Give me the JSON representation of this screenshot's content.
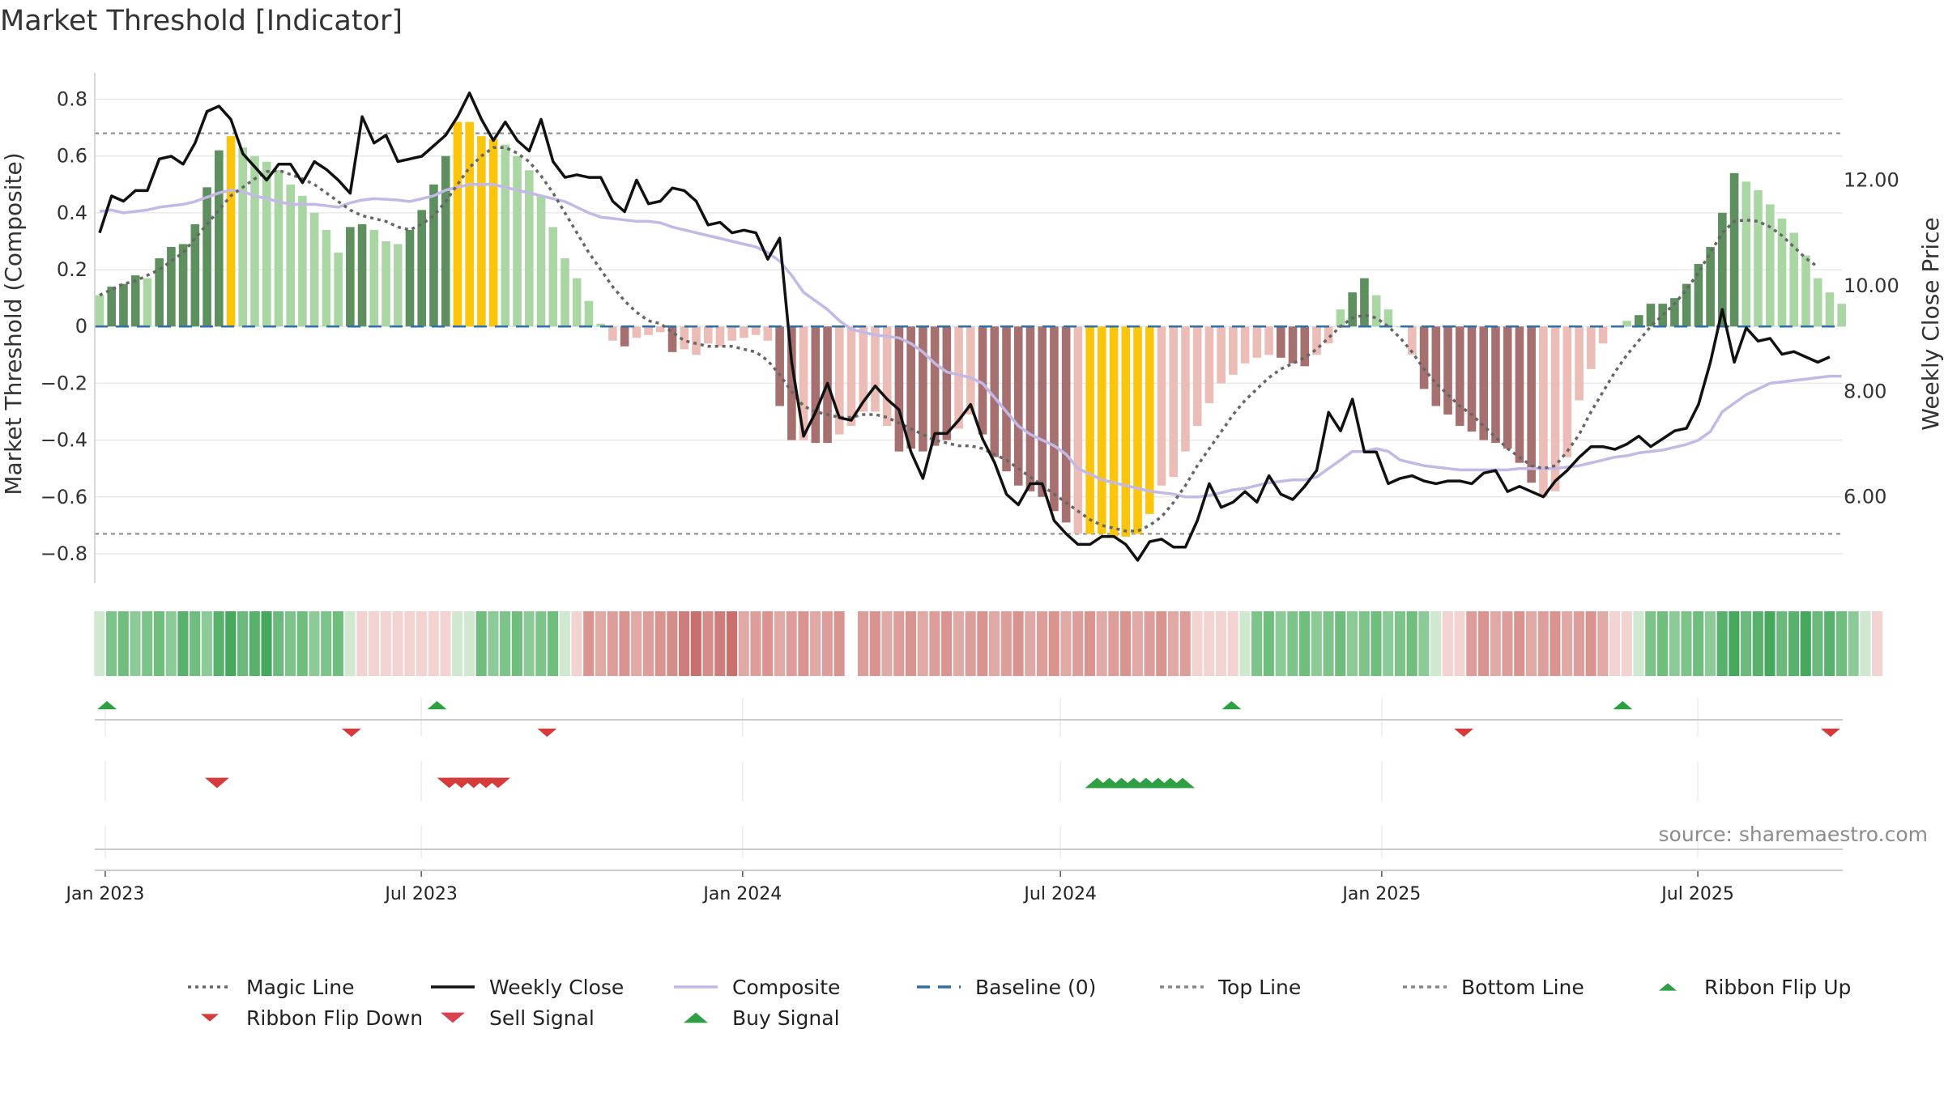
{
  "title": "Market Threshold [Indicator]",
  "source": "source: sharemaestro.com",
  "colors": {
    "strong_pos": "#5e8f5e",
    "weak_pos": "#a9d6a3",
    "strong_neg": "#a77070",
    "weak_neg": "#ebbdb6",
    "extreme": "#fbc50c",
    "close": "#111111",
    "composite": "#c3b8e6",
    "magic": "#666666",
    "baseline": "#2f70a8",
    "buy": "#2ea043",
    "sell": "#d63a3a"
  },
  "chart_data": {
    "type": "bar",
    "title": "Market Threshold [Indicator]",
    "ylabel": "Market Threshold (Composite)",
    "y2label": "Weekly Close Price",
    "ylim": [
      -0.86,
      0.85
    ],
    "y2lim": [
      4.6,
      13.8
    ],
    "yticks": [
      0.8,
      0.6,
      0.4,
      0.2,
      0,
      -0.2,
      -0.4,
      -0.6,
      -0.8
    ],
    "ytick_labels": [
      "0.8",
      "0.6",
      "0.4",
      "0.2",
      "0",
      "−0.2",
      "−0.4",
      "−0.6",
      "−0.8"
    ],
    "y2ticks": [
      12.0,
      10.0,
      8.0,
      6.0
    ],
    "y2tick_labels": [
      "12.00",
      "10.00",
      "8.00",
      "6.00"
    ],
    "top_line": 0.68,
    "bottom_line": -0.73,
    "x_start": "2022-12-26",
    "x_end": "2025-09-22",
    "xticks": [
      {
        "date": "2023-01-01",
        "label": "Jan 2023"
      },
      {
        "date": "2023-07-01",
        "label": "Jul 2023"
      },
      {
        "date": "2024-01-01",
        "label": "Jan 2024"
      },
      {
        "date": "2024-07-01",
        "label": "Jul 2024"
      },
      {
        "date": "2025-01-01",
        "label": "Jan 2025"
      },
      {
        "date": "2025-07-01",
        "label": "Jul 2025"
      }
    ],
    "bar_values": [
      0.11,
      0.14,
      0.15,
      0.18,
      0.17,
      0.24,
      0.28,
      0.29,
      0.36,
      0.49,
      0.62,
      0.67,
      0.63,
      0.6,
      0.58,
      0.55,
      0.5,
      0.46,
      0.4,
      0.34,
      0.26,
      0.35,
      0.36,
      0.34,
      0.3,
      0.29,
      0.34,
      0.41,
      0.5,
      0.6,
      0.72,
      0.72,
      0.67,
      0.66,
      0.64,
      0.6,
      0.55,
      0.46,
      0.35,
      0.24,
      0.17,
      0.09,
      0.01,
      -0.05,
      -0.07,
      -0.04,
      -0.03,
      -0.02,
      -0.09,
      -0.08,
      -0.1,
      -0.06,
      -0.07,
      -0.05,
      -0.04,
      -0.03,
      -0.05,
      -0.28,
      -0.4,
      -0.4,
      -0.41,
      -0.41,
      -0.38,
      -0.35,
      -0.3,
      -0.3,
      -0.35,
      -0.44,
      -0.43,
      -0.44,
      -0.42,
      -0.4,
      -0.36,
      -0.31,
      -0.38,
      -0.46,
      -0.51,
      -0.56,
      -0.58,
      -0.6,
      -0.65,
      -0.69,
      -0.73,
      -0.73,
      -0.73,
      -0.74,
      -0.74,
      -0.73,
      -0.66,
      -0.56,
      -0.53,
      -0.44,
      -0.35,
      -0.27,
      -0.2,
      -0.17,
      -0.13,
      -0.11,
      -0.1,
      -0.11,
      -0.13,
      -0.14,
      -0.1,
      -0.06,
      0.06,
      0.12,
      0.17,
      0.11,
      0.06,
      0.0,
      -0.1,
      -0.22,
      -0.28,
      -0.31,
      -0.35,
      -0.37,
      -0.4,
      -0.41,
      -0.43,
      -0.48,
      -0.55,
      -0.6,
      -0.58,
      -0.46,
      -0.26,
      -0.15,
      -0.06,
      0.0,
      0.02,
      0.04,
      0.08,
      0.08,
      0.1,
      0.15,
      0.22,
      0.28,
      0.4,
      0.54,
      0.51,
      0.48,
      0.43,
      0.38,
      0.33,
      0.25,
      0.17,
      0.12,
      0.08
    ],
    "bar_classes": [
      "w",
      "s",
      "s",
      "s",
      "w",
      "s",
      "s",
      "s",
      "s",
      "s",
      "s",
      "e",
      "w",
      "w",
      "w",
      "w",
      "w",
      "w",
      "w",
      "w",
      "w",
      "s",
      "s",
      "w",
      "w",
      "w",
      "s",
      "s",
      "s",
      "s",
      "e",
      "e",
      "e",
      "e",
      "w",
      "w",
      "w",
      "w",
      "w",
      "w",
      "w",
      "w",
      "w",
      "w",
      "s",
      "w",
      "w",
      "w",
      "s",
      "w",
      "w",
      "w",
      "w",
      "w",
      "w",
      "w",
      "w",
      "s",
      "s",
      "w",
      "s",
      "s",
      "w",
      "w",
      "w",
      "w",
      "w",
      "s",
      "s",
      "s",
      "s",
      "s",
      "w",
      "w",
      "s",
      "s",
      "s",
      "s",
      "s",
      "s",
      "s",
      "s",
      "w",
      "e",
      "e",
      "e",
      "e",
      "e",
      "e",
      "w",
      "w",
      "w",
      "w",
      "w",
      "w",
      "w",
      "w",
      "w",
      "w",
      "s",
      "s",
      "s",
      "w",
      "w",
      "w",
      "s",
      "s",
      "w",
      "w",
      "w",
      "w",
      "s",
      "s",
      "s",
      "s",
      "s",
      "s",
      "s",
      "s",
      "s",
      "s",
      "w",
      "w",
      "w",
      "w",
      "w",
      "w",
      "w",
      "w",
      "s",
      "s",
      "s",
      "s",
      "s",
      "s",
      "s",
      "s",
      "s",
      "w",
      "w",
      "w",
      "w",
      "w",
      "w",
      "w",
      "w"
    ],
    "series": [
      {
        "name": "Weekly Close",
        "axis": "right",
        "values": [
          11.0,
          11.7,
          11.6,
          11.8,
          11.8,
          12.4,
          12.45,
          12.3,
          12.7,
          13.3,
          13.4,
          13.15,
          12.5,
          12.25,
          12.0,
          12.3,
          12.3,
          11.95,
          12.35,
          12.2,
          12.0,
          11.75,
          13.2,
          12.7,
          12.85,
          12.35,
          12.4,
          12.45,
          12.65,
          12.85,
          13.2,
          13.65,
          13.15,
          12.75,
          13.1,
          12.75,
          12.55,
          13.15,
          12.35,
          12.05,
          12.1,
          12.05,
          12.05,
          11.6,
          11.4,
          12.0,
          11.55,
          11.6,
          11.85,
          11.8,
          11.6,
          11.15,
          11.2,
          11.0,
          11.05,
          11.0,
          10.5,
          10.9,
          8.55,
          7.15,
          7.6,
          8.15,
          7.5,
          7.45,
          7.8,
          8.1,
          7.85,
          7.65,
          6.85,
          6.35,
          7.2,
          7.2,
          7.45,
          7.75,
          7.1,
          6.65,
          6.05,
          5.85,
          6.25,
          6.25,
          5.55,
          5.3,
          5.1,
          5.1,
          5.25,
          5.25,
          5.1,
          4.8,
          5.15,
          5.2,
          5.05,
          5.05,
          5.55,
          6.25,
          5.8,
          5.9,
          6.1,
          5.9,
          6.4,
          6.05,
          5.95,
          6.2,
          6.5,
          7.6,
          7.25,
          7.85,
          6.85,
          6.85,
          6.25,
          6.35,
          6.4,
          6.3,
          6.25,
          6.3,
          6.3,
          6.25,
          6.45,
          6.5,
          6.1,
          6.2,
          6.1,
          6.0,
          6.3,
          6.5,
          6.75,
          6.95,
          6.95,
          6.9,
          7.0,
          7.15,
          6.95,
          7.1,
          7.25,
          7.3,
          7.75,
          8.55,
          9.55,
          8.55,
          9.2,
          8.95,
          9.0,
          8.7,
          8.75,
          8.65,
          8.55,
          8.65
        ]
      },
      {
        "name": "Composite",
        "axis": "left",
        "values": [
          0.405,
          0.41,
          0.4,
          0.405,
          0.41,
          0.42,
          0.425,
          0.43,
          0.44,
          0.455,
          0.47,
          0.48,
          0.475,
          0.46,
          0.45,
          0.44,
          0.43,
          0.43,
          0.43,
          0.425,
          0.42,
          0.435,
          0.445,
          0.45,
          0.448,
          0.445,
          0.44,
          0.45,
          0.46,
          0.48,
          0.49,
          0.5,
          0.5,
          0.5,
          0.49,
          0.48,
          0.47,
          0.46,
          0.45,
          0.44,
          0.42,
          0.4,
          0.385,
          0.38,
          0.375,
          0.37,
          0.37,
          0.365,
          0.35,
          0.34,
          0.33,
          0.32,
          0.31,
          0.3,
          0.29,
          0.28,
          0.26,
          0.23,
          0.18,
          0.12,
          0.09,
          0.06,
          0.02,
          -0.01,
          -0.02,
          -0.03,
          -0.035,
          -0.04,
          -0.06,
          -0.09,
          -0.13,
          -0.16,
          -0.17,
          -0.18,
          -0.2,
          -0.25,
          -0.3,
          -0.35,
          -0.38,
          -0.4,
          -0.42,
          -0.45,
          -0.5,
          -0.52,
          -0.54,
          -0.55,
          -0.56,
          -0.57,
          -0.58,
          -0.585,
          -0.59,
          -0.6,
          -0.6,
          -0.595,
          -0.585,
          -0.575,
          -0.57,
          -0.56,
          -0.55,
          -0.545,
          -0.54,
          -0.54,
          -0.53,
          -0.5,
          -0.47,
          -0.44,
          -0.44,
          -0.43,
          -0.44,
          -0.47,
          -0.48,
          -0.49,
          -0.495,
          -0.5,
          -0.505,
          -0.505,
          -0.505,
          -0.505,
          -0.505,
          -0.5,
          -0.5,
          -0.5,
          -0.5,
          -0.495,
          -0.49,
          -0.48,
          -0.47,
          -0.46,
          -0.455,
          -0.445,
          -0.44,
          -0.435,
          -0.425,
          -0.415,
          -0.4,
          -0.37,
          -0.3,
          -0.27,
          -0.24,
          -0.22,
          -0.2,
          -0.195,
          -0.19,
          -0.185,
          -0.18,
          -0.175,
          -0.175
        ]
      },
      {
        "name": "Magic Line",
        "axis": "left",
        "values": [
          0.11,
          0.13,
          0.15,
          0.16,
          0.18,
          0.2,
          0.23,
          0.26,
          0.31,
          0.36,
          0.41,
          0.46,
          0.49,
          0.52,
          0.545,
          0.55,
          0.535,
          0.52,
          0.5,
          0.47,
          0.44,
          0.41,
          0.39,
          0.38,
          0.37,
          0.35,
          0.34,
          0.36,
          0.39,
          0.44,
          0.5,
          0.56,
          0.6,
          0.63,
          0.63,
          0.61,
          0.58,
          0.53,
          0.47,
          0.4,
          0.33,
          0.26,
          0.2,
          0.14,
          0.09,
          0.05,
          0.02,
          0.01,
          -0.02,
          -0.05,
          -0.06,
          -0.07,
          -0.07,
          -0.07,
          -0.08,
          -0.09,
          -0.12,
          -0.17,
          -0.23,
          -0.28,
          -0.3,
          -0.31,
          -0.32,
          -0.32,
          -0.31,
          -0.31,
          -0.32,
          -0.34,
          -0.36,
          -0.38,
          -0.4,
          -0.41,
          -0.42,
          -0.42,
          -0.43,
          -0.45,
          -0.47,
          -0.5,
          -0.53,
          -0.56,
          -0.59,
          -0.62,
          -0.65,
          -0.68,
          -0.7,
          -0.71,
          -0.72,
          -0.72,
          -0.7,
          -0.67,
          -0.62,
          -0.56,
          -0.49,
          -0.43,
          -0.37,
          -0.31,
          -0.26,
          -0.22,
          -0.18,
          -0.15,
          -0.13,
          -0.11,
          -0.08,
          -0.04,
          0.0,
          0.03,
          0.04,
          0.03,
          0.0,
          -0.04,
          -0.09,
          -0.15,
          -0.2,
          -0.24,
          -0.28,
          -0.31,
          -0.35,
          -0.39,
          -0.43,
          -0.46,
          -0.49,
          -0.5,
          -0.49,
          -0.44,
          -0.38,
          -0.3,
          -0.23,
          -0.16,
          -0.1,
          -0.05,
          0.0,
          0.04,
          0.08,
          0.13,
          0.19,
          0.26,
          0.33,
          0.37,
          0.375,
          0.37,
          0.35,
          0.32,
          0.28,
          0.24,
          0.21
        ]
      }
    ],
    "ribbon": [
      1,
      2,
      2,
      2,
      2,
      2,
      2,
      3,
      2,
      2,
      3,
      3,
      3,
      3,
      3,
      3,
      2,
      2,
      2,
      2,
      2,
      1,
      -1,
      -1,
      -1,
      -1,
      -1,
      -1,
      -1,
      -1,
      1,
      1,
      2,
      2,
      2,
      2,
      2,
      2,
      2,
      1,
      -1,
      -2,
      -2,
      -2,
      -2,
      -2,
      -2,
      -2,
      -3,
      -3,
      -3,
      -3,
      -3,
      -3,
      -2,
      -2,
      -2,
      -2,
      -2,
      -2,
      -2,
      -2,
      -2,
      0,
      -2,
      -2,
      -2,
      -2,
      -2,
      -2,
      -2,
      -2,
      -2,
      -2,
      -2,
      -2,
      -2,
      -2,
      -2,
      -2,
      -2,
      -2,
      -2,
      -2,
      -2,
      -2,
      -2,
      -2,
      -2,
      -2,
      -2,
      -2,
      -1,
      -1,
      -1,
      -1,
      1,
      2,
      2,
      2,
      2,
      2,
      2,
      2,
      2,
      2,
      2,
      2,
      2,
      2,
      2,
      2,
      1,
      -1,
      -1,
      -2,
      -2,
      -2,
      -2,
      -2,
      -2,
      -2,
      -2,
      -2,
      -2,
      -2,
      -2,
      -1,
      -1,
      1,
      2,
      2,
      2,
      2,
      2,
      2,
      3,
      3,
      3,
      3,
      3,
      3,
      3,
      3,
      3,
      3,
      2,
      2,
      1,
      -1
    ],
    "ribbon_flip_up": [
      "2023-01-02",
      "2023-07-10",
      "2024-10-07",
      "2025-05-19"
    ],
    "ribbon_flip_down": [
      "2023-05-22",
      "2023-09-11",
      "2025-02-17",
      "2025-09-15"
    ],
    "sell_signals": [
      "2023-03-06",
      "2023-07-17",
      "2023-07-24",
      "2023-07-31",
      "2023-08-07",
      "2023-08-14"
    ],
    "buy_signals": [
      "2024-07-22",
      "2024-07-29",
      "2024-08-05",
      "2024-08-12",
      "2024-08-19",
      "2024-08-26",
      "2024-09-02",
      "2024-09-09"
    ]
  },
  "legend": [
    {
      "key": "magic",
      "label": "Magic Line",
      "icon": "dotted-line"
    },
    {
      "key": "close",
      "label": "Weekly Close",
      "icon": "solid-line"
    },
    {
      "key": "composite",
      "label": "Composite",
      "icon": "solid-line"
    },
    {
      "key": "baseline",
      "label": "Baseline (0)",
      "icon": "dashed-line"
    },
    {
      "key": "top",
      "label": "Top Line",
      "icon": "dotted-line"
    },
    {
      "key": "bottom",
      "label": "Bottom Line",
      "icon": "dotted-line"
    },
    {
      "key": "flip_up",
      "label": "Ribbon Flip Up",
      "icon": "triangle-up-icon"
    },
    {
      "key": "flip_down",
      "label": "Ribbon Flip Down",
      "icon": "triangle-down-icon"
    },
    {
      "key": "sell",
      "label": "Sell Signal",
      "icon": "triangle-down-icon"
    },
    {
      "key": "buy",
      "label": "Buy Signal",
      "icon": "triangle-up-icon"
    }
  ]
}
